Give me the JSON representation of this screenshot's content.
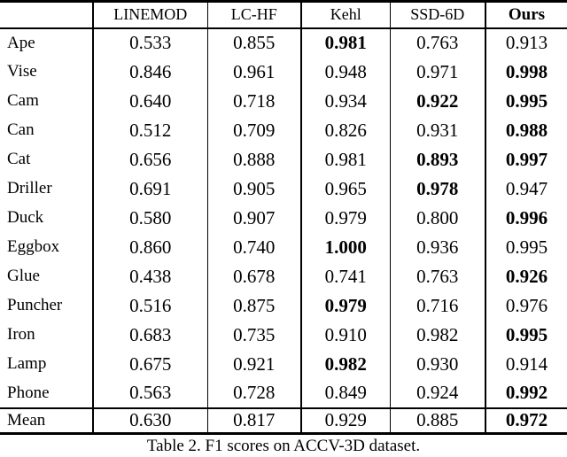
{
  "colors": {
    "text": "#000000",
    "background": "#ffffff"
  },
  "table": {
    "columns": [
      "",
      "LINEMOD",
      "LC-HF",
      "Kehl",
      "SSD-6D",
      "Ours"
    ],
    "rows": [
      {
        "label": "Ape",
        "cells": [
          {
            "v": "0.533",
            "b": false
          },
          {
            "v": "0.855",
            "b": false
          },
          {
            "v": "0.981",
            "b": true
          },
          {
            "v": "0.763",
            "b": false
          },
          {
            "v": "0.913",
            "b": false
          }
        ]
      },
      {
        "label": "Vise",
        "cells": [
          {
            "v": "0.846",
            "b": false
          },
          {
            "v": "0.961",
            "b": false
          },
          {
            "v": "0.948",
            "b": false
          },
          {
            "v": "0.971",
            "b": false
          },
          {
            "v": "0.998",
            "b": true
          }
        ]
      },
      {
        "label": "Cam",
        "cells": [
          {
            "v": "0.640",
            "b": false
          },
          {
            "v": "0.718",
            "b": false
          },
          {
            "v": "0.934",
            "b": false
          },
          {
            "v": "0.922",
            "b": true
          },
          {
            "v": "0.995",
            "b": true
          }
        ]
      },
      {
        "label": "Can",
        "cells": [
          {
            "v": "0.512",
            "b": false
          },
          {
            "v": "0.709",
            "b": false
          },
          {
            "v": "0.826",
            "b": false
          },
          {
            "v": "0.931",
            "b": false
          },
          {
            "v": "0.988",
            "b": true
          }
        ]
      },
      {
        "label": "Cat",
        "cells": [
          {
            "v": "0.656",
            "b": false
          },
          {
            "v": "0.888",
            "b": false
          },
          {
            "v": "0.981",
            "b": false
          },
          {
            "v": "0.893",
            "b": true
          },
          {
            "v": "0.997",
            "b": true
          }
        ]
      },
      {
        "label": "Driller",
        "cells": [
          {
            "v": "0.691",
            "b": false
          },
          {
            "v": "0.905",
            "b": false
          },
          {
            "v": "0.965",
            "b": false
          },
          {
            "v": "0.978",
            "b": true
          },
          {
            "v": "0.947",
            "b": false
          }
        ]
      },
      {
        "label": "Duck",
        "cells": [
          {
            "v": "0.580",
            "b": false
          },
          {
            "v": "0.907",
            "b": false
          },
          {
            "v": "0.979",
            "b": false
          },
          {
            "v": "0.800",
            "b": false
          },
          {
            "v": "0.996",
            "b": true
          }
        ]
      },
      {
        "label": "Eggbox",
        "cells": [
          {
            "v": "0.860",
            "b": false
          },
          {
            "v": "0.740",
            "b": false
          },
          {
            "v": "1.000",
            "b": true
          },
          {
            "v": "0.936",
            "b": false
          },
          {
            "v": "0.995",
            "b": false
          }
        ]
      },
      {
        "label": "Glue",
        "cells": [
          {
            "v": "0.438",
            "b": false
          },
          {
            "v": "0.678",
            "b": false
          },
          {
            "v": "0.741",
            "b": false
          },
          {
            "v": "0.763",
            "b": false
          },
          {
            "v": "0.926",
            "b": true
          }
        ]
      },
      {
        "label": "Puncher",
        "cells": [
          {
            "v": "0.516",
            "b": false
          },
          {
            "v": "0.875",
            "b": false
          },
          {
            "v": "0.979",
            "b": true
          },
          {
            "v": "0.716",
            "b": false
          },
          {
            "v": "0.976",
            "b": false
          }
        ]
      },
      {
        "label": "Iron",
        "cells": [
          {
            "v": "0.683",
            "b": false
          },
          {
            "v": "0.735",
            "b": false
          },
          {
            "v": "0.910",
            "b": false
          },
          {
            "v": "0.982",
            "b": false
          },
          {
            "v": "0.995",
            "b": true
          }
        ]
      },
      {
        "label": "Lamp",
        "cells": [
          {
            "v": "0.675",
            "b": false
          },
          {
            "v": "0.921",
            "b": false
          },
          {
            "v": "0.982",
            "b": true
          },
          {
            "v": "0.930",
            "b": false
          },
          {
            "v": "0.914",
            "b": false
          }
        ]
      },
      {
        "label": "Phone",
        "cells": [
          {
            "v": "0.563",
            "b": false
          },
          {
            "v": "0.728",
            "b": false
          },
          {
            "v": "0.849",
            "b": false
          },
          {
            "v": "0.924",
            "b": false
          },
          {
            "v": "0.992",
            "b": true
          }
        ]
      }
    ],
    "mean_row": {
      "label": "Mean",
      "cells": [
        {
          "v": "0.630",
          "b": false
        },
        {
          "v": "0.817",
          "b": false
        },
        {
          "v": "0.929",
          "b": false
        },
        {
          "v": "0.885",
          "b": false
        },
        {
          "v": "0.972",
          "b": true
        }
      ]
    }
  },
  "caption": "Table 2. F1 scores on ACCV-3D dataset."
}
